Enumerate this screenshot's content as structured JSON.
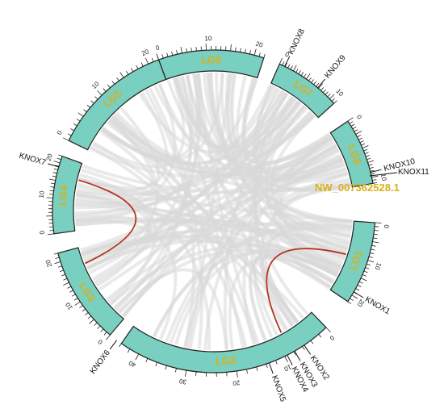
{
  "colors": {
    "segment_fill": "#79cfc0",
    "label": "#d8b11a",
    "link_background": "#d9d9d9",
    "link_highlight": "#b3341c"
  },
  "segments": [
    {
      "id": "LG6",
      "label": "LG6",
      "ticks": [
        "0",
        "10",
        "20"
      ]
    },
    {
      "id": "LG7",
      "label": "LG7",
      "ticks": [
        "0",
        "10"
      ]
    },
    {
      "id": "LG8",
      "label": "LG8",
      "ticks": [
        "0",
        "10"
      ]
    },
    {
      "id": "LG1",
      "label": "LG1",
      "ticks": [
        "0",
        "10",
        "20"
      ]
    },
    {
      "id": "LG2",
      "label": "LG2",
      "ticks": [
        "0",
        "10",
        "20",
        "30",
        "40"
      ]
    },
    {
      "id": "LG3",
      "label": "LG3",
      "ticks": [
        "0",
        "10",
        "20"
      ]
    },
    {
      "id": "LG4",
      "label": "LG4",
      "ticks": [
        "0",
        "10",
        "20"
      ]
    },
    {
      "id": "LG5",
      "label": "LG5",
      "ticks": [
        "0",
        "10",
        "20"
      ]
    }
  ],
  "genes": [
    {
      "id": "KNOX8",
      "label": "KNOX8"
    },
    {
      "id": "KNOX9",
      "label": "KNOX9"
    },
    {
      "id": "KNOX10",
      "label": "KNOX10"
    },
    {
      "id": "KNOX11",
      "label": "KNOX11"
    },
    {
      "id": "KNOX1",
      "label": "KNOX1"
    },
    {
      "id": "KNOX2",
      "label": "KNOX2"
    },
    {
      "id": "KNOX3",
      "label": "KNOX3"
    },
    {
      "id": "KNOX4",
      "label": "KNOX4"
    },
    {
      "id": "KNOX5",
      "label": "KNOX5"
    },
    {
      "id": "KNOX6",
      "label": "KNOX6"
    },
    {
      "id": "KNOX7",
      "label": "KNOX7"
    }
  ],
  "scaffold_label": "NW_007362528.1"
}
